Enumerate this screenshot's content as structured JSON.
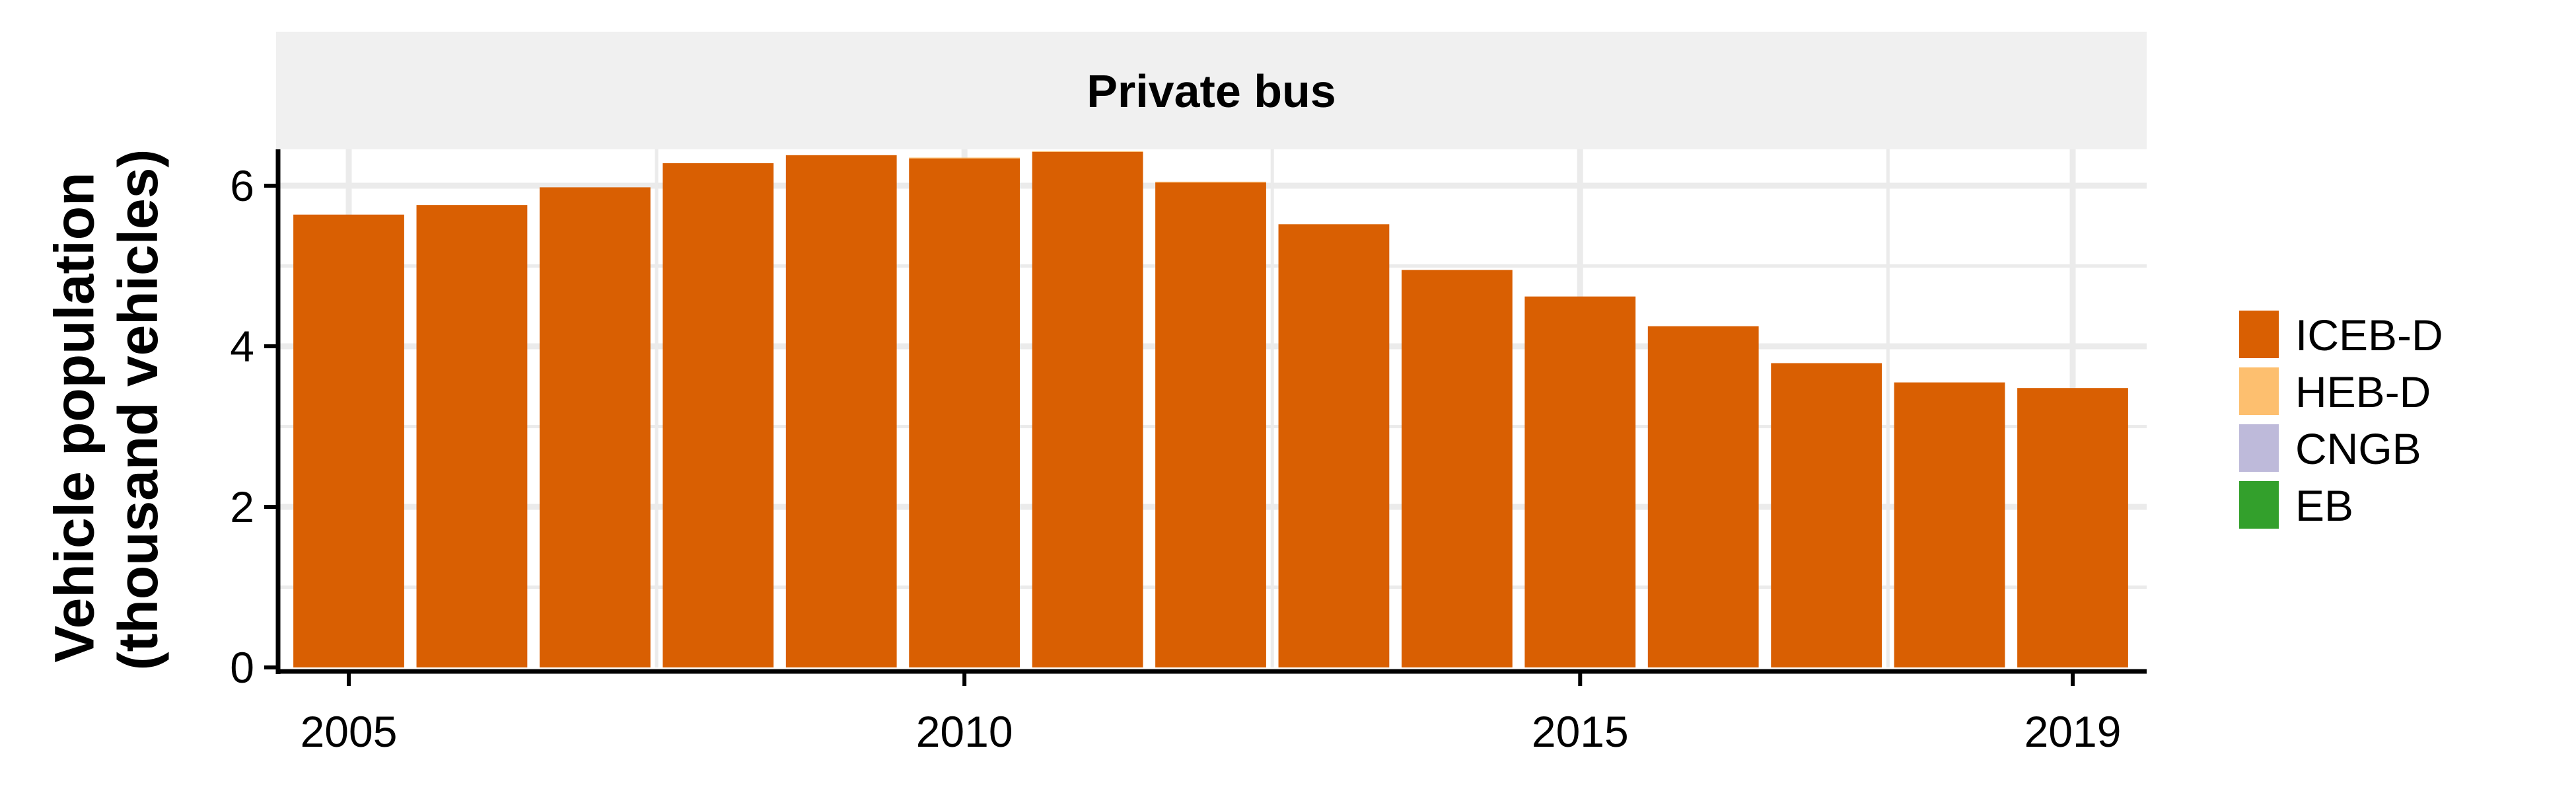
{
  "chart_data": {
    "type": "bar",
    "stacked": true,
    "facet_title": "Private bus",
    "ylabel_line1": "Vehicle population",
    "ylabel_line2": "(thousand vehicles)",
    "xlabel": "",
    "categories": [
      2005,
      2006,
      2007,
      2008,
      2009,
      2010,
      2011,
      2012,
      2013,
      2014,
      2015,
      2016,
      2017,
      2018,
      2019
    ],
    "x_ticks": [
      {
        "value": 2005,
        "label": "2005"
      },
      {
        "value": 2010,
        "label": "2010"
      },
      {
        "value": 2015,
        "label": "2015"
      },
      {
        "value": 2019,
        "label": "2019"
      }
    ],
    "y_ticks": [
      {
        "value": 0,
        "label": "0"
      },
      {
        "value": 2,
        "label": "2"
      },
      {
        "value": 4,
        "label": "4"
      },
      {
        "value": 6,
        "label": "6"
      }
    ],
    "ylim": [
      0,
      6.4
    ],
    "grid": true,
    "legend_position": "right",
    "series": [
      {
        "name": "ICEB-D",
        "color": "#D95F02",
        "values": [
          5.64,
          5.76,
          5.98,
          6.28,
          6.38,
          6.34,
          6.42,
          6.04,
          5.52,
          4.95,
          4.62,
          4.25,
          3.79,
          3.55,
          3.48
        ]
      },
      {
        "name": "HEB-D",
        "color": "#FDBF6F",
        "values": [
          0,
          0,
          0,
          0,
          0,
          0.01,
          0.01,
          0.01,
          0,
          0,
          0,
          0,
          0,
          0,
          0
        ]
      },
      {
        "name": "CNGB",
        "color": "#BEBADA",
        "values": [
          0,
          0,
          0,
          0,
          0,
          0,
          0,
          0,
          0,
          0,
          0,
          0,
          0,
          0,
          0
        ]
      },
      {
        "name": "EB",
        "color": "#33A02C",
        "values": [
          0,
          0,
          0,
          0,
          0,
          0,
          0,
          0,
          0,
          0,
          0,
          0,
          0,
          0,
          0
        ]
      }
    ]
  }
}
